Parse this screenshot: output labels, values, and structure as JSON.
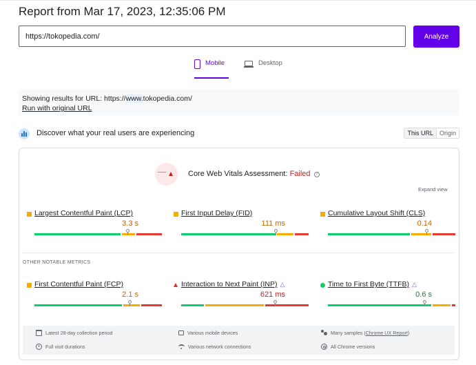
{
  "report": {
    "title": "Report from Mar 17, 2023, 12:35:06 PM"
  },
  "search": {
    "value": "https://tokopedia.com/",
    "analyze_label": "Analyze"
  },
  "tabs": {
    "mobile": "Mobile",
    "desktop": "Desktop"
  },
  "url_info": {
    "prefix": "Showing results for URL: https://",
    "highlight": "www.",
    "suffix": "tokopedia.com/",
    "run_original": "Run with original URL"
  },
  "discover": {
    "text": "Discover what your real users are experiencing",
    "toggle_this_url": "This URL",
    "toggle_origin": "Origin"
  },
  "assessment": {
    "label": "Core Web Vitals Assessment:",
    "status": "Failed",
    "icon_text": "⁀⁀⁀",
    "expand": "Expand view"
  },
  "metrics": [
    {
      "name": "Largest Contentful Paint (LCP)",
      "value": "3.3 s",
      "rating": "needs-improvement"
    },
    {
      "name": "First Input Delay (FID)",
      "value": "111 ms",
      "rating": "needs-improvement"
    },
    {
      "name": "Cumulative Layout Shift (CLS)",
      "value": "0.14",
      "rating": "needs-improvement"
    }
  ],
  "other_title": "OTHER NOTABLE METRICS",
  "other_metrics": [
    {
      "name": "First Contentful Paint (FCP)",
      "value": "2.1 s",
      "rating": "needs-improvement"
    },
    {
      "name": "Interaction to Next Paint (INP)",
      "value": "621 ms",
      "rating": "poor",
      "experimental": true
    },
    {
      "name": "Time to First Byte (TTFB)",
      "value": "0.6 s",
      "rating": "good",
      "experimental": true
    }
  ],
  "footer": {
    "collection": "Latest 28-day collection period",
    "devices": "Various mobile devices",
    "samples_prefix": "Many samples (",
    "samples_link": "Chrome UX Report",
    "samples_suffix": ")",
    "durations": "Full visit durations",
    "network": "Various network connections",
    "browsers": "All Chrome versions"
  },
  "colors": {
    "accent": "#6200ea",
    "good": "#0cce6b",
    "needs_improvement": "#f9ab00",
    "poor": "#e53935"
  }
}
